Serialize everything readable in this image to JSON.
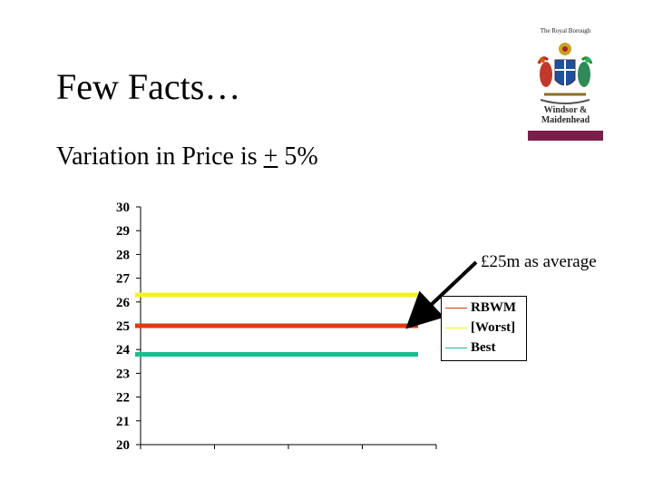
{
  "slide": {
    "title": "Few Facts…",
    "subtitle_prefix": "Variation in Price is ",
    "subtitle_pm": "+",
    "subtitle_suffix": " 5%"
  },
  "logo": {
    "top_text": "The Royal Borough",
    "name_line1": "Windsor &",
    "name_line2": "Maidenhead",
    "bar_color": "#7a1f4a"
  },
  "annotation": {
    "text": "£25m as average"
  },
  "chart_data": {
    "type": "line",
    "ylim": [
      20,
      30
    ],
    "y_ticks": [
      30,
      29,
      28,
      27,
      26,
      25,
      24,
      23,
      22,
      21,
      20
    ],
    "x_categories": 4,
    "grid": false,
    "legend_position": "right",
    "series": [
      {
        "name": "RBWM",
        "value": 25,
        "color": "#dd3a12"
      },
      {
        "name": "[Worst]",
        "value": 26.3,
        "color": "#f4f226"
      },
      {
        "name": "Best",
        "value": 23.8,
        "color": "#14c08e"
      }
    ]
  }
}
